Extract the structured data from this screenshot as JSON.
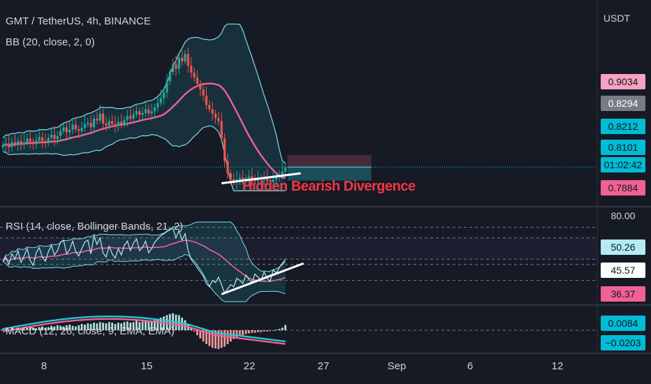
{
  "header": {
    "symbol": "GMT / TetherUS, 4h, BINANCE",
    "bb_label": "BB (20, close, 2, 0)",
    "rsi_label": "RSI (14, close, Bollinger Bands, 21, 2)",
    "macd_label": "MACD (12, 26, close, 9, EMA, EMA)",
    "currency": "USDT"
  },
  "annotation": "Hidden Bearish Divergence",
  "price_tags": [
    {
      "text": "0.9034",
      "bg": "#f8a1c1",
      "fg": "#131722"
    },
    {
      "text": "0.8294",
      "bg": "#787b86",
      "fg": "#ffffff"
    },
    {
      "text": "0.8212",
      "bg": "#00bcd4",
      "fg": "#131722"
    },
    {
      "text": "0.8101",
      "bg": "#00bcd4",
      "fg": "#131722"
    },
    {
      "text": "01:02:42",
      "bg": "#00bcd4",
      "fg": "#131722"
    },
    {
      "text": "0.7884",
      "bg": "#f06292",
      "fg": "#131722"
    }
  ],
  "rsi_tags": [
    {
      "text": "80.00",
      "bg": "none",
      "fg": "#d1d4dc"
    },
    {
      "text": "50.26",
      "bg": "#b2ebf2",
      "fg": "#131722"
    },
    {
      "text": "45.57",
      "bg": "#ffffff",
      "fg": "#131722"
    },
    {
      "text": "36.37",
      "bg": "#f06292",
      "fg": "#131722"
    }
  ],
  "macd_tags": [
    {
      "text": "0.0084",
      "bg": "#00bcd4",
      "fg": "#131722"
    },
    {
      "text": "−0.0203",
      "bg": "#00bcd4",
      "fg": "#131722"
    }
  ],
  "colors": {
    "up": "#26a69a",
    "down": "#ef5350",
    "basis": "#f06292",
    "band": "#80deea",
    "rsi": "#b2ebf2"
  },
  "chart_data": {
    "type": "candlestick",
    "x_ticks": [
      "8",
      "15",
      "22",
      "27",
      "Sep",
      "6",
      "12"
    ],
    "price": {
      "close": [
        0.845,
        0.848,
        0.842,
        0.85,
        0.847,
        0.852,
        0.846,
        0.85,
        0.856,
        0.851,
        0.847,
        0.853,
        0.858,
        0.852,
        0.85,
        0.857,
        0.862,
        0.855,
        0.86,
        0.868,
        0.874,
        0.866,
        0.87,
        0.878,
        0.871,
        0.868,
        0.873,
        0.879,
        0.881,
        0.874,
        0.888,
        0.885,
        0.896,
        0.88,
        0.877,
        0.884,
        0.879,
        0.876,
        0.883,
        0.879,
        0.886,
        0.892,
        0.888,
        0.895,
        0.9,
        0.894,
        0.897,
        0.903,
        0.896,
        0.9,
        0.906,
        0.913,
        0.921,
        0.93,
        0.948,
        0.963,
        0.975,
        0.968,
        0.986,
        0.98,
        0.992,
        0.973,
        0.962,
        0.954,
        0.944,
        0.935,
        0.925,
        0.91,
        0.903,
        0.896,
        0.889,
        0.884,
        0.856,
        0.82,
        0.8,
        0.79,
        0.786,
        0.79,
        0.793,
        0.789,
        0.792,
        0.795,
        0.79,
        0.788,
        0.792,
        0.79,
        0.793,
        0.788,
        0.786,
        0.79,
        0.794,
        0.795,
        0.803,
        0.81
      ],
      "bb_upper_max": 1.045,
      "bb_lower_min": 0.77,
      "basis_peak": 0.955,
      "ylim": [
        0.77,
        1.045
      ]
    },
    "rsi": {
      "values": [
        48,
        52,
        45,
        55,
        50,
        58,
        47,
        53,
        60,
        49,
        44,
        56,
        61,
        52,
        48,
        57,
        63,
        54,
        58,
        66,
        68,
        55,
        59,
        67,
        57,
        53,
        60,
        66,
        68,
        55,
        72,
        64,
        70,
        56,
        52,
        62,
        55,
        51,
        60,
        54,
        63,
        67,
        58,
        65,
        69,
        58,
        61,
        67,
        56,
        60,
        66,
        69,
        72,
        74,
        76,
        78,
        79,
        70,
        77,
        68,
        74,
        58,
        50,
        46,
        42,
        38,
        34,
        27,
        24,
        30,
        28,
        33,
        26,
        18,
        22,
        26,
        24,
        32,
        30,
        27,
        35,
        31,
        28,
        36,
        33,
        30,
        38,
        32,
        29,
        40,
        37,
        42,
        46,
        50.26
      ],
      "ma_last": 45.57,
      "lower_last": 36.37,
      "overbought": 80,
      "ylim": [
        10,
        85
      ]
    },
    "macd": {
      "hist": [
        0.002,
        0.003,
        0.001,
        0.004,
        0.002,
        0.003,
        0.004,
        0.002,
        0.003,
        0.005,
        0.004,
        0.003,
        0.005,
        0.006,
        0.004,
        0.005,
        0.007,
        0.006,
        0.008,
        0.007,
        0.006,
        0.008,
        0.009,
        0.007,
        0.006,
        0.008,
        0.01,
        0.009,
        0.011,
        0.01,
        0.012,
        0.011,
        0.013,
        0.012,
        0.011,
        0.013,
        0.012,
        0.01,
        0.012,
        0.011,
        0.013,
        0.014,
        0.012,
        0.013,
        0.015,
        0.013,
        0.014,
        0.016,
        0.015,
        0.014,
        0.016,
        0.018,
        0.02,
        0.022,
        0.024,
        0.026,
        0.027,
        0.025,
        0.024,
        0.02,
        0.016,
        0.01,
        0.004,
        -0.002,
        -0.008,
        -0.013,
        -0.018,
        -0.022,
        -0.025,
        -0.028,
        -0.029,
        -0.03,
        -0.028,
        -0.026,
        -0.022,
        -0.018,
        -0.014,
        -0.012,
        -0.01,
        -0.008,
        -0.006,
        -0.005,
        -0.004,
        -0.004,
        -0.003,
        -0.003,
        -0.002,
        -0.002,
        -0.001,
        0.0,
        0.001,
        0.002,
        0.004,
        0.0084
      ],
      "macd_last": -0.0203
    }
  }
}
